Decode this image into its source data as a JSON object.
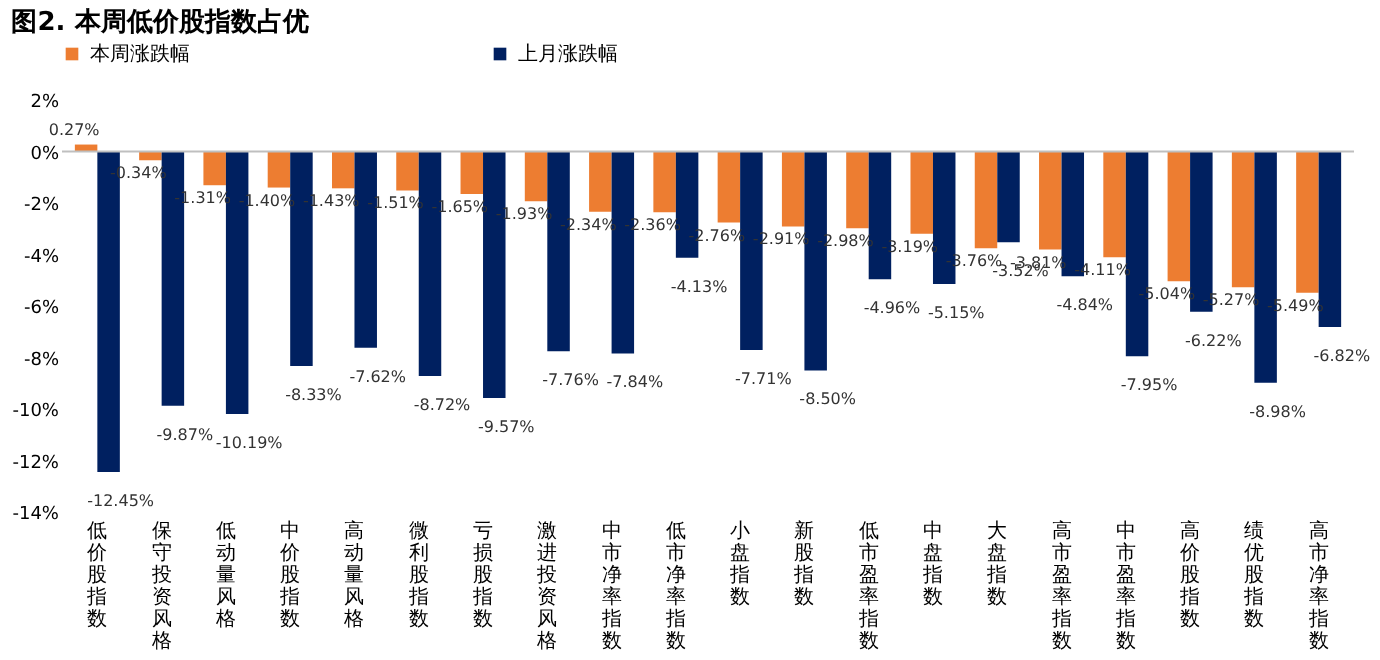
{
  "chart_data": {
    "type": "bar",
    "title": "图2. 本周低价股指数占优",
    "categories": [
      "低价股指数",
      "保守投资风格",
      "低动量风格",
      "中价股指数",
      "高动量风格",
      "微利股指数",
      "亏损股指数",
      "激进投资风格",
      "中市净率指数",
      "低市净率指数",
      "小盘指数",
      "新股指数",
      "低市盈率指数",
      "中盘指数",
      "大盘指数",
      "高市盈率指数",
      "中市盈率指数",
      "高价股指数",
      "绩优股指数",
      "高市净率指数"
    ],
    "series": [
      {
        "name": "本周涨跌幅",
        "color": "#ed7d31",
        "values": [
          0.27,
          -0.34,
          -1.31,
          -1.4,
          -1.43,
          -1.51,
          -1.65,
          -1.93,
          -2.34,
          -2.36,
          -2.76,
          -2.91,
          -2.98,
          -3.19,
          -3.76,
          -3.81,
          -4.11,
          -5.04,
          -5.27,
          -5.49
        ],
        "value_labels": [
          "0.27%",
          "-0.34%",
          "-1.31%",
          "-1.40%",
          "-1.43%",
          "-1.51%",
          "-1.65%",
          "-1.93%",
          "-2.34%",
          "-2.36%",
          "-2.76%",
          "-2.91%",
          "-2.98%",
          "-3.19%",
          "-3.76%",
          "-3.81%",
          "-4.11%",
          "-5.04%",
          "-5.27%",
          "-5.49%"
        ]
      },
      {
        "name": "上月涨跌幅",
        "color": "#002060",
        "values": [
          -12.45,
          -9.87,
          -10.19,
          -8.33,
          -7.62,
          -8.72,
          -9.57,
          -7.76,
          -7.84,
          -4.13,
          -7.71,
          -8.5,
          -4.96,
          -5.15,
          -3.52,
          -4.84,
          -7.95,
          -6.22,
          -8.98,
          -6.82
        ],
        "value_labels": [
          "-12.45%",
          "-9.87%",
          "-10.19%",
          "-8.33%",
          "-7.62%",
          "-8.72%",
          "-9.57%",
          "-7.76%",
          "-7.84%",
          "-4.13%",
          "-7.71%",
          "-8.50%",
          "-4.96%",
          "-5.15%",
          "-3.52%",
          "-4.84%",
          "-7.95%",
          "-6.22%",
          "-8.98%",
          "-6.82%"
        ]
      }
    ],
    "ylim": [
      -14,
      2
    ],
    "yticks": [
      {
        "value": -14,
        "label": "-14%"
      },
      {
        "value": -12,
        "label": "-12%"
      },
      {
        "value": -10,
        "label": "-10%"
      },
      {
        "value": -8,
        "label": "-8%"
      },
      {
        "value": -6,
        "label": "-6%"
      },
      {
        "value": -4,
        "label": "-4%"
      },
      {
        "value": -2,
        "label": "-2%"
      },
      {
        "value": 0,
        "label": "0%"
      },
      {
        "value": 2,
        "label": "2%"
      }
    ],
    "legend": "top"
  }
}
